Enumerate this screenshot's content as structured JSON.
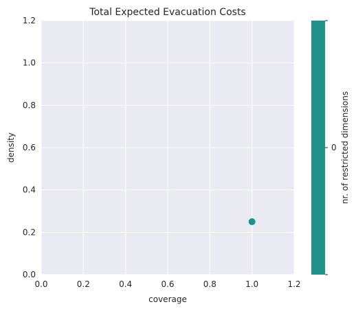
{
  "chart_data": {
    "type": "scatter",
    "title": "Total Expected Evacuation Costs",
    "xlabel": "coverage",
    "ylabel": "density",
    "xlim": [
      0.0,
      1.2
    ],
    "ylim": [
      0.0,
      1.2
    ],
    "xticks": [
      "0.0",
      "0.2",
      "0.4",
      "0.6",
      "0.8",
      "1.0",
      "1.2"
    ],
    "yticks": [
      "0.0",
      "0.2",
      "0.4",
      "0.6",
      "0.8",
      "1.0",
      "1.2"
    ],
    "grid": true,
    "points": [
      {
        "x": 1.0,
        "y": 0.25,
        "restricted_dimensions": 0
      }
    ],
    "colorbar": {
      "label": "nr. of restricted dimensions",
      "ticks": [
        "0"
      ],
      "color": "#21918c"
    },
    "colors": {
      "plot_background": "#eaeaf2",
      "grid": "#ffffff",
      "point": "#21918c"
    }
  }
}
